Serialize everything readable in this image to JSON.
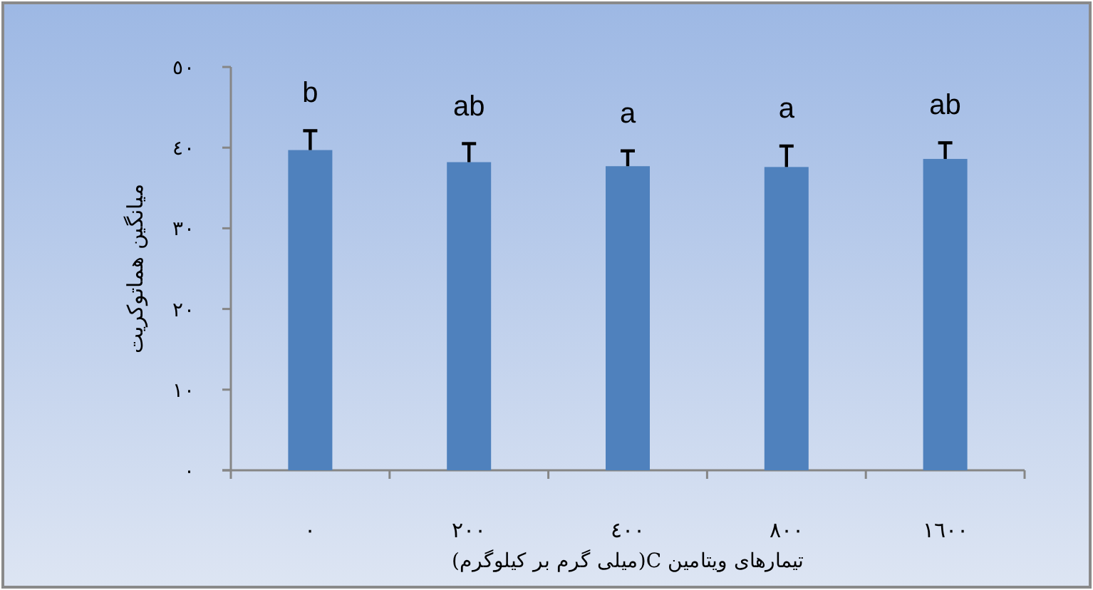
{
  "chart_data": {
    "type": "bar",
    "categories": [
      "٠",
      "٢٠٠",
      "٤٠٠",
      "٨٠٠",
      "١٦٠٠"
    ],
    "values": [
      39.7,
      38.2,
      37.7,
      37.6,
      38.6
    ],
    "errors": [
      [
        39.7,
        42.1
      ],
      [
        38.2,
        40.5
      ],
      [
        37.7,
        39.6
      ],
      [
        37.6,
        40.2
      ],
      [
        38.6,
        40.6
      ]
    ],
    "color": "#4f81bd",
    "ylim": [
      0,
      50
    ],
    "yticks": [
      {
        "value": 0,
        "label": "٠"
      },
      {
        "value": 10,
        "label": "١٠"
      },
      {
        "value": 20,
        "label": "٢٠"
      },
      {
        "value": 30,
        "label": "٣٠"
      },
      {
        "value": 40,
        "label": "٤٠"
      },
      {
        "value": 50,
        "label": "٥٠"
      }
    ],
    "xlabel": "تیمارهای ویتامین C(میلی گرم بر کیلوگرم)",
    "ylabel": "میانگین هماتوکریت",
    "grid": false,
    "annotations": [
      "b",
      "ab",
      "a",
      "a",
      "ab"
    ]
  }
}
